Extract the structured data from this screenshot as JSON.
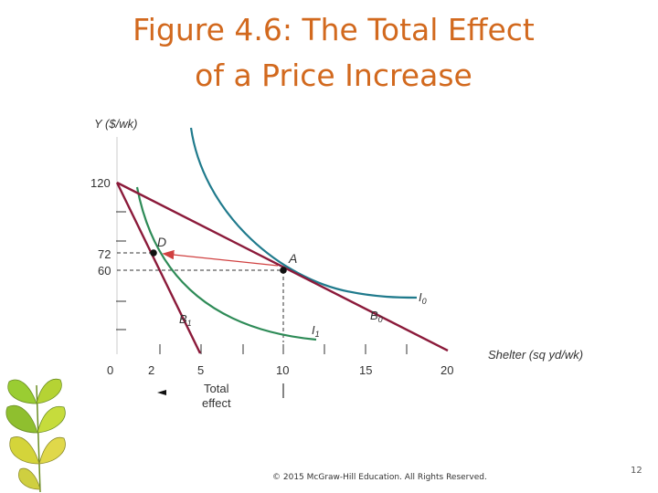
{
  "slide": {
    "title_line1": "Figure 4.6: The Total Effect",
    "title_line2": "of a Price Increase",
    "copyright": "© 2015 McGraw-Hill Education. All Rights Reserved.",
    "page_number": "12"
  },
  "diagram": {
    "y_axis_label": "Y ($/wk)",
    "x_axis_label": "Shelter (sq yd/wk)",
    "y_ticks": [
      {
        "label": "120",
        "value": 120
      },
      {
        "label": "72",
        "value": 72
      },
      {
        "label": "60",
        "value": 60
      }
    ],
    "x_ticks": [
      {
        "label": "0",
        "value": 0
      },
      {
        "label": "2",
        "value": 2
      },
      {
        "label": "5",
        "value": 5
      },
      {
        "label": "10",
        "value": 10
      },
      {
        "label": "15",
        "value": 15
      },
      {
        "label": "20",
        "value": 20
      }
    ],
    "points": [
      {
        "id": "A",
        "label": "A",
        "x": 10,
        "y": 60
      },
      {
        "id": "D",
        "label": "D",
        "x": 2,
        "y": 72
      }
    ],
    "budget_lines": [
      {
        "id": "B0",
        "label": "B",
        "subscript": "0",
        "color": "#8b1a3a"
      },
      {
        "id": "B1",
        "label": "B",
        "subscript": "1",
        "color": "#8b1a3a"
      }
    ],
    "indifference_curves": [
      {
        "id": "I0",
        "label": "I",
        "subscript": "0",
        "color": "#1f7a8c"
      },
      {
        "id": "I1",
        "label": "I",
        "subscript": "1",
        "color": "#2e8b57"
      }
    ],
    "arrow_color": "#d04040",
    "total_effect_label_1": "Total",
    "total_effect_label_2": "effect"
  },
  "colors": {
    "title": "#d2691e",
    "budget_line": "#8b1a3a",
    "indifference_I0": "#1f7a8c",
    "indifference_I1": "#2e8b57",
    "arrow": "#d04040"
  }
}
